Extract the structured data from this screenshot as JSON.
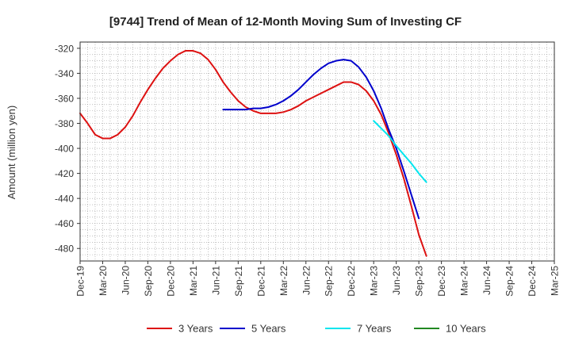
{
  "chart_data": {
    "type": "line",
    "title": "[9744]  Trend of Mean of 12-Month Moving Sum of Investing CF",
    "ylabel": "Amount (million yen)",
    "xlabel": "",
    "ylim": [
      -490,
      -315
    ],
    "yticks": [
      -320,
      -340,
      -360,
      -380,
      -400,
      -420,
      -440,
      -460,
      -480
    ],
    "x_ticks": [
      "Dec-19",
      "Mar-20",
      "Jun-20",
      "Sep-20",
      "Dec-20",
      "Mar-21",
      "Jun-21",
      "Sep-21",
      "Dec-21",
      "Mar-22",
      "Jun-22",
      "Sep-22",
      "Dec-22",
      "Mar-23",
      "Jun-23",
      "Sep-23",
      "Dec-23",
      "Mar-24",
      "Jun-24",
      "Sep-24",
      "Dec-24",
      "Mar-25"
    ],
    "grid": true,
    "legend_position": "bottom",
    "series": [
      {
        "name": "3 Years",
        "color": "#dd1111",
        "values": [
          [
            0,
            -372
          ],
          [
            1,
            -380
          ],
          [
            2,
            -389
          ],
          [
            3,
            -392
          ],
          [
            4,
            -392
          ],
          [
            5,
            -389
          ],
          [
            6,
            -383
          ],
          [
            7,
            -374
          ],
          [
            8,
            -363
          ],
          [
            9,
            -353
          ],
          [
            10,
            -344
          ],
          [
            11,
            -336
          ],
          [
            12,
            -330
          ],
          [
            13,
            -325
          ],
          [
            14,
            -322
          ],
          [
            15,
            -322
          ],
          [
            16,
            -324
          ],
          [
            17,
            -329
          ],
          [
            18,
            -337
          ],
          [
            19,
            -347
          ],
          [
            20,
            -355
          ],
          [
            21,
            -362
          ],
          [
            22,
            -367
          ],
          [
            23,
            -370
          ],
          [
            24,
            -372
          ],
          [
            25,
            -372
          ],
          [
            26,
            -372
          ],
          [
            27,
            -371
          ],
          [
            28,
            -369
          ],
          [
            29,
            -366
          ],
          [
            30,
            -362
          ],
          [
            31,
            -359
          ],
          [
            32,
            -356
          ],
          [
            33,
            -353
          ],
          [
            34,
            -350
          ],
          [
            35,
            -347
          ],
          [
            36,
            -347
          ],
          [
            37,
            -349
          ],
          [
            38,
            -354
          ],
          [
            39,
            -362
          ],
          [
            40,
            -373
          ],
          [
            41,
            -388
          ],
          [
            42,
            -405
          ],
          [
            43,
            -424
          ],
          [
            44,
            -446
          ],
          [
            45,
            -469
          ],
          [
            46,
            -486
          ]
        ]
      },
      {
        "name": "5 Years",
        "color": "#0000cc",
        "values": [
          [
            19,
            -369
          ],
          [
            20,
            -369
          ],
          [
            21,
            -369
          ],
          [
            22,
            -369
          ],
          [
            23,
            -368
          ],
          [
            24,
            -368
          ],
          [
            25,
            -367
          ],
          [
            26,
            -365
          ],
          [
            27,
            -362
          ],
          [
            28,
            -358
          ],
          [
            29,
            -353
          ],
          [
            30,
            -347
          ],
          [
            31,
            -341
          ],
          [
            32,
            -336
          ],
          [
            33,
            -332
          ],
          [
            34,
            -330
          ],
          [
            35,
            -329
          ],
          [
            36,
            -330
          ],
          [
            37,
            -335
          ],
          [
            38,
            -343
          ],
          [
            39,
            -354
          ],
          [
            40,
            -368
          ],
          [
            41,
            -385
          ],
          [
            42,
            -400
          ],
          [
            43,
            -418
          ],
          [
            44,
            -437
          ],
          [
            45,
            -456
          ]
        ]
      },
      {
        "name": "7 Years",
        "color": "#00e5ee",
        "values": [
          [
            39,
            -378
          ],
          [
            40,
            -384
          ],
          [
            41,
            -390
          ],
          [
            42,
            -398
          ],
          [
            43,
            -405
          ],
          [
            44,
            -412
          ],
          [
            45,
            -420
          ],
          [
            46,
            -427
          ]
        ]
      },
      {
        "name": "10 Years",
        "color": "#228822",
        "values": []
      }
    ]
  }
}
